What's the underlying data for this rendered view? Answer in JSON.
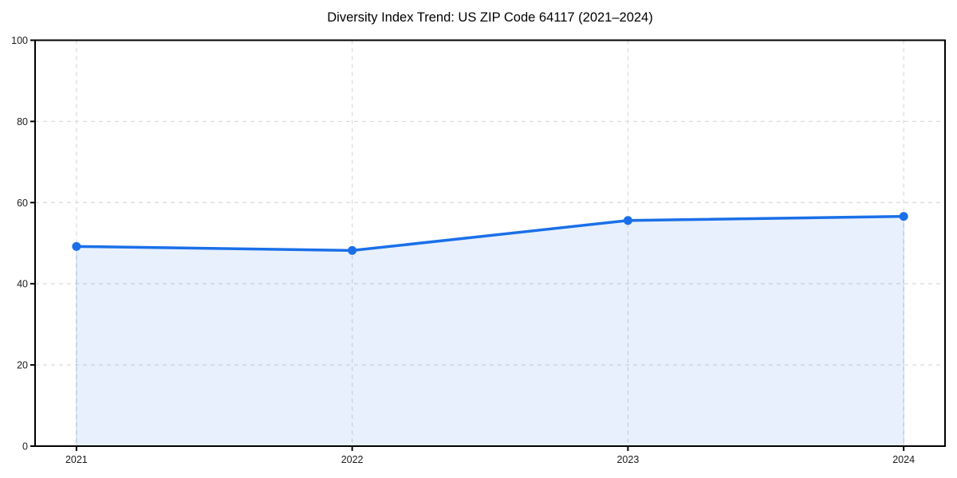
{
  "chart_data": {
    "type": "area",
    "title": "Diversity Index Trend: US ZIP Code 64117 (2021–2024)",
    "x": [
      2021,
      2022,
      2023,
      2024
    ],
    "xticklabels": [
      "2021",
      "2022",
      "2023",
      "2024"
    ],
    "series": [
      {
        "name": "Diversity Index",
        "values": [
          49.2,
          48.2,
          55.6,
          56.6
        ]
      }
    ],
    "xlabel": "",
    "ylabel": "",
    "ylim": [
      0,
      100
    ],
    "yticks": [
      0,
      20,
      40,
      60,
      80,
      100
    ],
    "yticklabels": [
      "0",
      "20",
      "40",
      "60",
      "80",
      "100"
    ],
    "x_margin_fraction": 0.05,
    "grid": "dashed",
    "grid_axes": "both",
    "legend": "none",
    "marker": "circle",
    "colors": {
      "line": "#1a6fe8",
      "marker": "#1a6fe8",
      "area_fill": "rgba(26,111,232,0.10)",
      "area_edge": "rgba(26,111,232,0.25)",
      "grid": "#dcdcdc",
      "spine": "#000000",
      "tick_label": "#1a1a1a",
      "title": "#000000",
      "background": "#ffffff"
    }
  }
}
